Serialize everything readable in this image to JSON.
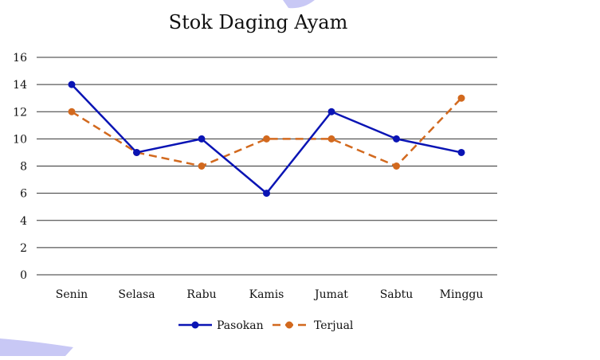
{
  "chart_data": {
    "type": "line",
    "title": "Stok Daging Ayam",
    "xlabel": "",
    "ylabel": "",
    "categories": [
      "Senin",
      "Selasa",
      "Rabu",
      "Kamis",
      "Jumat",
      "Sabtu",
      "Minggu"
    ],
    "series": [
      {
        "name": "Pasokan",
        "values": [
          14,
          9,
          10,
          6,
          12,
          10,
          9
        ],
        "color": "#0a14b4",
        "style": "solid"
      },
      {
        "name": "Terjual",
        "values": [
          12,
          9,
          8,
          10,
          10,
          8,
          13
        ],
        "color": "#d2691e",
        "style": "dashed"
      }
    ],
    "ylim": [
      0,
      16
    ],
    "yticks": [
      "0",
      "2",
      "4",
      "6",
      "8",
      "10",
      "12",
      "14",
      "16"
    ],
    "grid": "horizontal",
    "legend": "bottom-center",
    "colors": {
      "gridline": "#333333",
      "swoosh": "#c8c8f5"
    }
  }
}
